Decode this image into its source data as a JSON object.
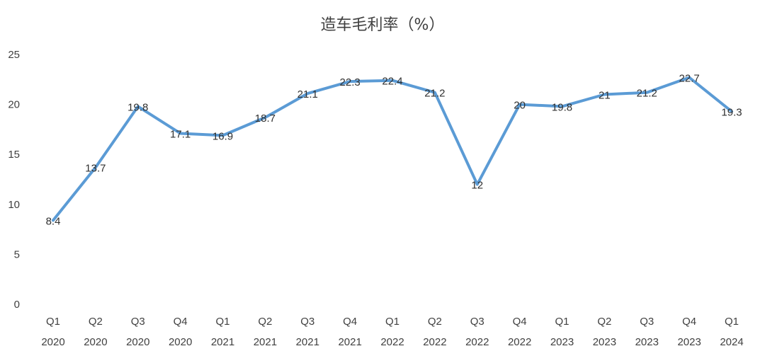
{
  "chart_data": {
    "type": "line",
    "title": "造车毛利率（%）",
    "categories": [
      [
        "Q1",
        "2020"
      ],
      [
        "Q2",
        "2020"
      ],
      [
        "Q3",
        "2020"
      ],
      [
        "Q4",
        "2020"
      ],
      [
        "Q1",
        "2021"
      ],
      [
        "Q2",
        "2021"
      ],
      [
        "Q3",
        "2021"
      ],
      [
        "Q4",
        "2021"
      ],
      [
        "Q1",
        "2022"
      ],
      [
        "Q2",
        "2022"
      ],
      [
        "Q3",
        "2022"
      ],
      [
        "Q4",
        "2022"
      ],
      [
        "Q1",
        "2023"
      ],
      [
        "Q2",
        "2023"
      ],
      [
        "Q3",
        "2023"
      ],
      [
        "Q4",
        "2023"
      ],
      [
        "Q1",
        "2024"
      ]
    ],
    "series": [
      {
        "values": [
          8.4,
          13.7,
          19.8,
          17.1,
          16.9,
          18.7,
          21.1,
          22.3,
          22.4,
          21.2,
          12,
          20,
          19.8,
          21,
          21.2,
          22.7,
          19.3
        ],
        "labels": [
          "8.4",
          "13.7",
          "19.8",
          "17.1",
          "16.9",
          "18.7",
          "21.1",
          "22.3",
          "22.4",
          "21.2",
          "12",
          "20",
          "19.8",
          "21",
          "21.2",
          "22.7",
          "19.3"
        ],
        "color": "#5b9bd5"
      }
    ],
    "yticks": [
      "0",
      "5",
      "10",
      "15",
      "20",
      "25"
    ],
    "ylim": [
      0,
      25
    ],
    "grid": false,
    "legend": "none",
    "xlabel": "",
    "ylabel": ""
  }
}
